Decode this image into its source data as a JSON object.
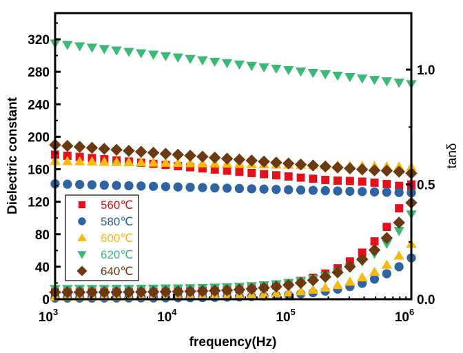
{
  "chart_data": {
    "type": "scatter",
    "title": "",
    "xlabel": "frequency(Hz)",
    "ylabel": "Dielectric constant",
    "y2label": "tanδ",
    "xscale": "log",
    "xlim": [
      1000,
      1000000
    ],
    "ylim": [
      0,
      350
    ],
    "y2lim": [
      0,
      1.3
    ],
    "x_ticks": [
      {
        "base": "10",
        "exp": "3"
      },
      {
        "base": "10",
        "exp": "4"
      },
      {
        "base": "10",
        "exp": "5"
      },
      {
        "base": "10",
        "exp": "6"
      }
    ],
    "y_ticks": [
      "0",
      "40",
      "80",
      "120",
      "160",
      "200",
      "240",
      "280",
      "320"
    ],
    "y2_ticks": [
      "0.0",
      "0.5",
      "1.0"
    ],
    "grid": false,
    "legend_position": "bottom-left",
    "legend": [
      {
        "name": "560℃",
        "color": "#e3111b",
        "marker": "square"
      },
      {
        "name": "580℃",
        "color": "#2f64a0",
        "marker": "circle"
      },
      {
        "name": "600℃",
        "color": "#f7b912",
        "marker": "triangle-up"
      },
      {
        "name": "620℃",
        "color": "#3cb878",
        "marker": "triangle-down"
      },
      {
        "name": "640℃",
        "color": "#6b3a12",
        "marker": "diamond"
      }
    ],
    "points_per_decade": 9.67,
    "log_x_start": 3,
    "log_x_end": 6,
    "n_points": 30,
    "dielectric_constant": [
      {
        "name": "560℃",
        "start": 178,
        "end": 137,
        "knee": 0.78
      },
      {
        "name": "580℃",
        "start": 142,
        "end": 131,
        "knee": 1.0
      },
      {
        "name": "600℃",
        "start": 170,
        "end": 163,
        "knee": 1.0
      },
      {
        "name": "620℃",
        "start": 315,
        "end": 265,
        "knee": 1.0
      },
      {
        "name": "640℃",
        "start": 190,
        "end": 155,
        "knee": 0.9
      }
    ],
    "tan_delta": [
      {
        "name": "560℃",
        "low": 0.03,
        "high": 0.5
      },
      {
        "name": "580℃",
        "low": 0.005,
        "high": 0.18
      },
      {
        "name": "600℃",
        "low": 0.01,
        "high": 0.24
      },
      {
        "name": "620℃",
        "low": 0.045,
        "high": 0.37
      },
      {
        "name": "640℃",
        "low": 0.03,
        "high": 0.42
      }
    ]
  }
}
